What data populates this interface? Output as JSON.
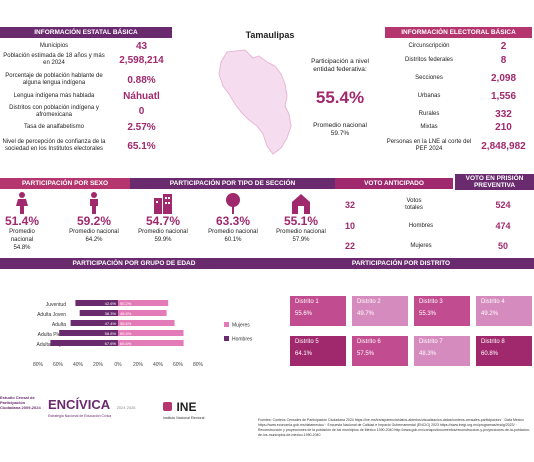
{
  "state": "Tamaulipas",
  "colors": {
    "purple": "#6a2b6e",
    "pink": "#b5356e",
    "magenta": "#a0296d",
    "light": "#d58bbd",
    "dark_pink": "#c14c8f"
  },
  "left": {
    "header": "INFORMACIÓN ESTATAL BÁSICA",
    "rows": [
      {
        "label": "Municipios",
        "value": "43"
      },
      {
        "label": "Población estimada de 18 años y más en 2024",
        "value": "2,598,214"
      },
      {
        "label": "Porcentaje de población hablante de alguna lengua indígena",
        "value": "0.88%"
      },
      {
        "label": "Lengua indígena más hablada",
        "value": "Náhuatl"
      },
      {
        "label": "Distritos con población indígena y afromexicana",
        "value": "0"
      },
      {
        "label": "Tasa de analfabetismo",
        "value": "2.57%"
      },
      {
        "label": "Nivel de percepción de confianza de la sociedad en los Institutos electorales",
        "value": "65.1%"
      }
    ]
  },
  "center": {
    "part_label": "Participación a nivel entidad federativa:",
    "part_value": "55.4%",
    "prom_label": "Promedio nacional",
    "prom_value": "59.7%"
  },
  "right": {
    "header": "INFORMACIÓN ELECTORAL BÁSICA",
    "rows": [
      {
        "label": "Circunscripción",
        "value": "2"
      },
      {
        "label": "Distritos federales",
        "value": "8"
      },
      {
        "label": "Secciones",
        "value": "2,098"
      },
      {
        "label": "Urbanas",
        "value": "1,556"
      },
      {
        "label": "Rurales",
        "value": "332"
      },
      {
        "label": "Mixtas",
        "value": "210"
      },
      {
        "label": "Personas en la LNE al corte del PEF 2024",
        "value": "2,848,982"
      }
    ]
  },
  "sections": {
    "sexo": "PARTICIPACIÓN POR SEXO",
    "seccion": "PARTICIPACIÓN POR TIPO DE SECCIÓN",
    "anticipado": "VOTO ANTICIPADO",
    "prision": "VOTO EN PRISIÓN PREVENTIVA",
    "edad": "PARTICIPACIÓN POR GRUPO DE EDAD",
    "distrito": "PARTICIPACIÓN POR DISTRITO"
  },
  "stats": [
    {
      "icon": "female-icon",
      "value": "51.4%",
      "prom_label": "Promedio nacional",
      "prom": "54.8%"
    },
    {
      "icon": "male-icon",
      "value": "59.2%",
      "prom_label": "Promedio nacional",
      "prom": "64.2%"
    },
    {
      "icon": "urban-icon",
      "value": "54.7%",
      "prom_label": "Promedio nacional",
      "prom": "59.9%"
    },
    {
      "icon": "rural-icon",
      "value": "63.3%",
      "prom_label": "Promedio nacional",
      "prom": "60.1%"
    },
    {
      "icon": "mixed-icon",
      "value": "55.1%",
      "prom_label": "Promedio nacional",
      "prom": "57.9%"
    }
  ],
  "votes": [
    {
      "anticipado": "32",
      "label": "Votos totales",
      "prision": "524"
    },
    {
      "anticipado": "10",
      "label": "Hombres",
      "prision": "474"
    },
    {
      "anticipado": "22",
      "label": "Mujeres",
      "prision": "50"
    }
  ],
  "chart_data": {
    "type": "bar",
    "orientation": "horizontal-butterfly",
    "categories": [
      "Juventud",
      "Adulta Joven",
      "Adulta",
      "Adulta Plena",
      "Adulta Mayor"
    ],
    "series": [
      {
        "name": "Hombres",
        "values": [
          42.6,
          38.3,
          47.4,
          58.8,
          67.6
        ],
        "color": "#6a2b6e"
      },
      {
        "name": "Mujeres",
        "values": [
          50.2,
          48.6,
          56.6,
          65.5,
          65.6
        ],
        "color": "#e27bb7"
      }
    ],
    "tick_labels": [
      "80%",
      "60%",
      "40%",
      "20%",
      "0%",
      "20%",
      "40%",
      "60%",
      "80%"
    ],
    "xlim": [
      -80,
      80
    ]
  },
  "districts": [
    {
      "name": "Distrito 1",
      "value": "55.6%",
      "color": "#c14c8f"
    },
    {
      "name": "Distrito 2",
      "value": "49.7%",
      "color": "#d58bbd"
    },
    {
      "name": "Distrito 3",
      "value": "55.3%",
      "color": "#c14c8f"
    },
    {
      "name": "Distrito 4",
      "value": "49.2%",
      "color": "#d58bbd"
    },
    {
      "name": "Distrito 5",
      "value": "64.1%",
      "color": "#a0296d"
    },
    {
      "name": "Distrito 6",
      "value": "57.5%",
      "color": "#c14c8f"
    },
    {
      "name": "Distrito 7",
      "value": "48.3%",
      "color": "#d58bbd"
    },
    {
      "name": "Distrito 8",
      "value": "60.8%",
      "color": "#a0296d"
    }
  ],
  "footer": {
    "logo1": "Estudio Censal de Participación Ciudadana 2009-2024",
    "logo2": "ENCÍVICA",
    "logo2_sub": "Estrategia Nacional de Educación Cívica",
    "logo2_years": "2024 2026",
    "logo3": "INE",
    "logo3_sub": "Instituto Nacional Electoral",
    "sources": "Fuentes: Conteos Censales de Participación Ciudadana 2024 https://ine.mx/transparencia/datos-abiertos/visualizacion-datos/conteos-censales-participacion/ · Data México https://www.economia.gob.mx/datamexico/ · Encuesta Nacional de Calidad e Impacto Gubernamental (ENCIG) 2023 https://www.inegi.org.mx/programas/encig/2023/ · Reconstrucción y proyecciones de la población de los municipios de México 1990-2040 http://www.gob.mx/conapo/documentos/reconstruccion-y-proyecciones-de-la-poblacion-de-los-municipios-de-mexico-1990-2040"
  }
}
